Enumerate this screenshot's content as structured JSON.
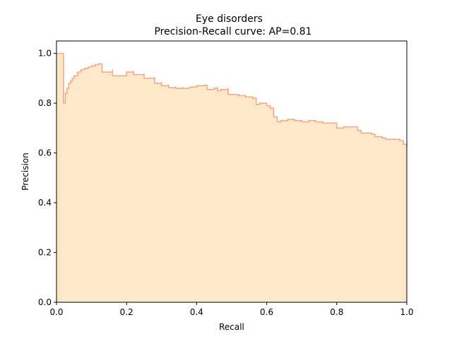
{
  "chart_data": {
    "type": "area",
    "title": "Eye disorders",
    "subtitle": "Precision-Recall curve: AP=0.81",
    "xlabel": "Recall",
    "ylabel": "Precision",
    "xlim": [
      0.0,
      1.0
    ],
    "ylim": [
      0.0,
      1.05
    ],
    "xticks": [
      "0.0",
      "0.2",
      "0.4",
      "0.6",
      "0.8",
      "1.0"
    ],
    "yticks": [
      "0.0",
      "0.2",
      "0.4",
      "0.6",
      "0.8",
      "1.0"
    ],
    "grid": false,
    "fill_color": "#fde9c9",
    "line_color": "#f4a582",
    "series": [
      {
        "recall": [
          0.0,
          0.02,
          0.02,
          0.025,
          0.03,
          0.035,
          0.04,
          0.045,
          0.05,
          0.06,
          0.07,
          0.08,
          0.09,
          0.1,
          0.11,
          0.12,
          0.13,
          0.13,
          0.16,
          0.16,
          0.2,
          0.22,
          0.22,
          0.25,
          0.25,
          0.28,
          0.28,
          0.3,
          0.3,
          0.32,
          0.32,
          0.34,
          0.34,
          0.36,
          0.36,
          0.38,
          0.4,
          0.42,
          0.43,
          0.43,
          0.45,
          0.46,
          0.46,
          0.47,
          0.49,
          0.49,
          0.5,
          0.52,
          0.54,
          0.56,
          0.57,
          0.57,
          0.58,
          0.6,
          0.61,
          0.62,
          0.62,
          0.63,
          0.63,
          0.64,
          0.66,
          0.68,
          0.7,
          0.72,
          0.74,
          0.76,
          0.78,
          0.8,
          0.8,
          0.82,
          0.84,
          0.86,
          0.86,
          0.87,
          0.9,
          0.91,
          0.93,
          0.94,
          0.96,
          0.98,
          0.99,
          1.0
        ],
        "precision": [
          1.0,
          1.0,
          0.8,
          0.84,
          0.86,
          0.88,
          0.89,
          0.9,
          0.91,
          0.925,
          0.935,
          0.94,
          0.945,
          0.95,
          0.955,
          0.958,
          0.96,
          0.925,
          0.935,
          0.91,
          0.925,
          0.93,
          0.915,
          0.92,
          0.9,
          0.905,
          0.88,
          0.885,
          0.87,
          0.875,
          0.862,
          0.868,
          0.86,
          0.865,
          0.86,
          0.865,
          0.87,
          0.872,
          0.87,
          0.855,
          0.86,
          0.865,
          0.85,
          0.855,
          0.862,
          0.835,
          0.835,
          0.83,
          0.825,
          0.82,
          0.8,
          0.795,
          0.8,
          0.79,
          0.78,
          0.775,
          0.745,
          0.74,
          0.725,
          0.73,
          0.735,
          0.73,
          0.725,
          0.73,
          0.725,
          0.72,
          0.72,
          0.715,
          0.7,
          0.705,
          0.705,
          0.7,
          0.69,
          0.68,
          0.675,
          0.665,
          0.66,
          0.655,
          0.655,
          0.65,
          0.635,
          0.625
        ]
      }
    ]
  }
}
